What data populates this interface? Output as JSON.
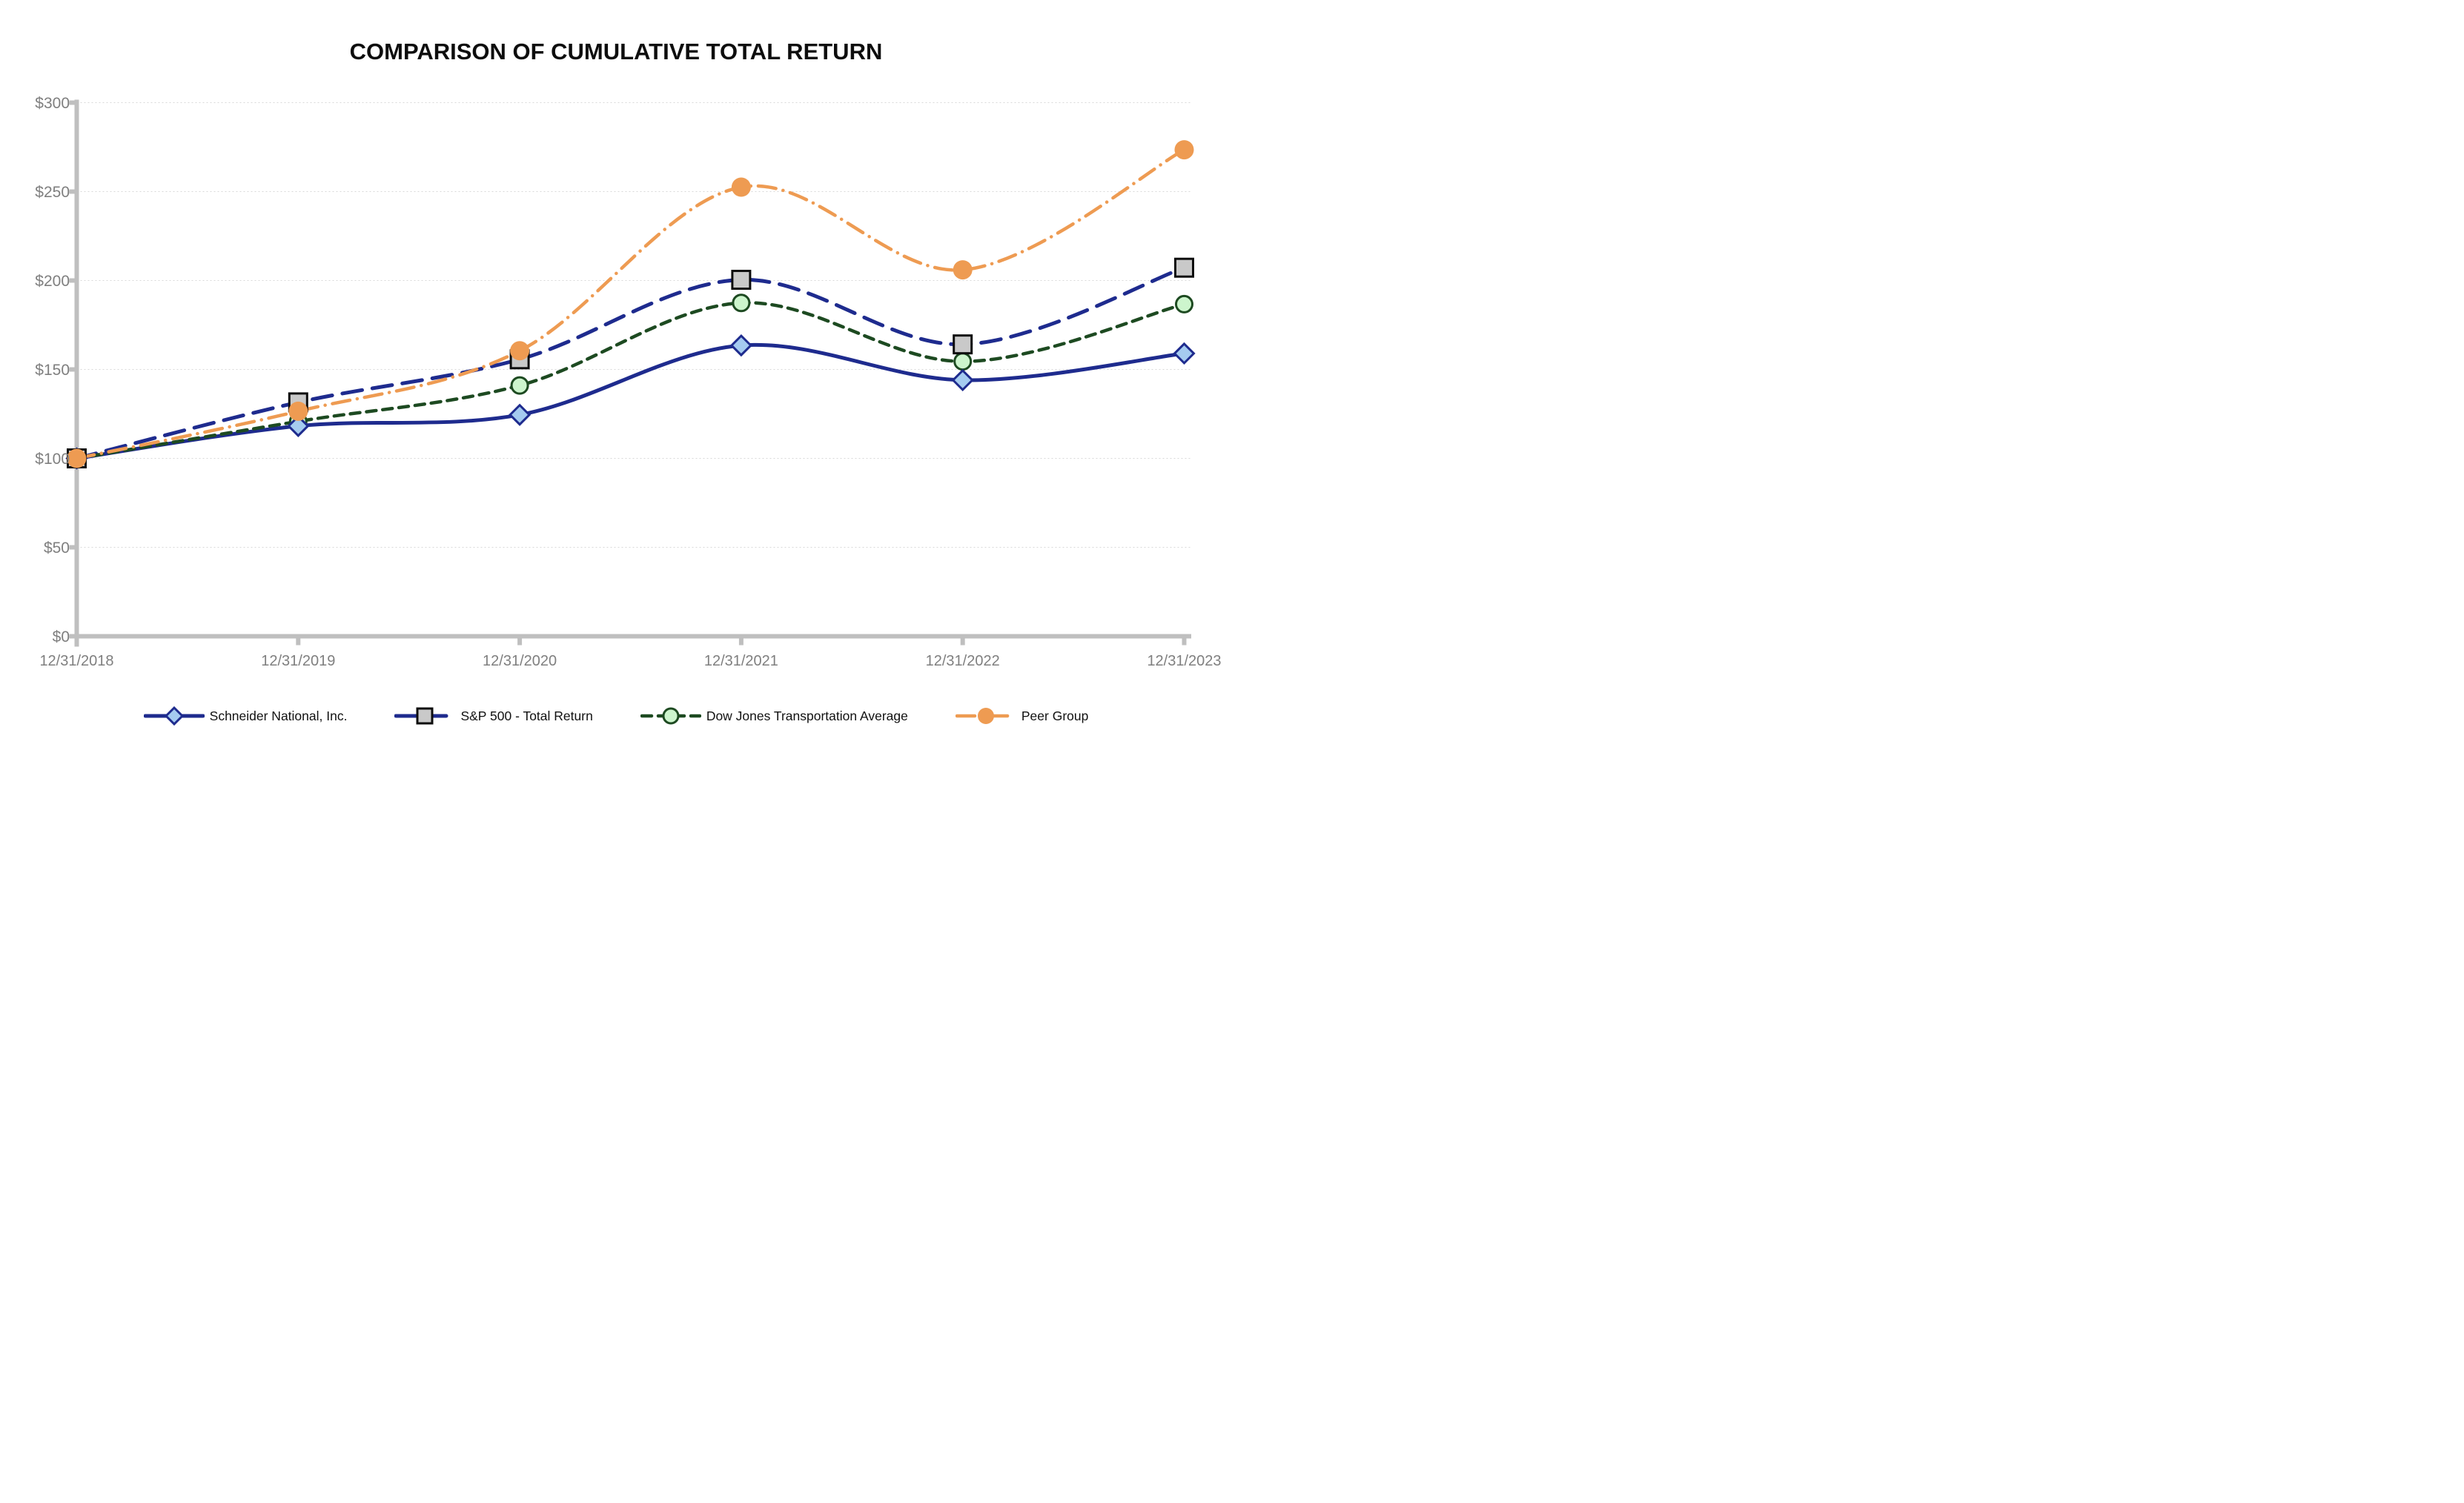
{
  "title": "COMPARISON OF CUMULATIVE TOTAL RETURN",
  "chart_data": {
    "type": "line",
    "title": "COMPARISON OF CUMULATIVE TOTAL RETURN",
    "x": [
      "12/31/2018",
      "12/31/2019",
      "12/31/2020",
      "12/31/2021",
      "12/31/2022",
      "12/31/2023"
    ],
    "y_tick_values": [
      0,
      50,
      100,
      150,
      200,
      250,
      300
    ],
    "y_tick_labels": [
      "$0",
      "$50",
      "$100",
      "$150",
      "$200",
      "$250",
      "$300"
    ],
    "ylim": [
      0,
      300
    ],
    "grid": "horizontal-dotted",
    "legend_position": "bottom",
    "series": [
      {
        "name": "Schneider National, Inc.",
        "values": [
          100,
          118.2,
          124.5,
          163.5,
          144.0,
          159.0
        ],
        "color": "#1E2B8E",
        "line_style": "solid",
        "marker": "diamond",
        "marker_fill": "#A5CBF0"
      },
      {
        "name": "S&P 500 - Total Return",
        "values": [
          100,
          131.5,
          155.7,
          200.4,
          164.1,
          207.2
        ],
        "color": "#1E2B8E",
        "line_style": "long-dash",
        "marker": "square",
        "marker_fill": "#C9C9C9",
        "marker_stroke": "#0d0d0d"
      },
      {
        "name": "Dow Jones Transportation Average",
        "values": [
          100,
          120.8,
          141.0,
          187.4,
          154.5,
          186.7
        ],
        "color": "#1D4A21",
        "line_style": "dash",
        "marker": "circle-outline",
        "marker_fill": "#CDF5CD"
      },
      {
        "name": "Peer Group",
        "values": [
          100,
          126.5,
          160.5,
          252.5,
          206.0,
          273.5
        ],
        "color": "#EE9B52",
        "line_style": "dash-dot",
        "marker": "circle",
        "marker_fill": "#EE9B52"
      }
    ],
    "axis_color": "#BFBFBF",
    "gridline_color": "#D9D9D9",
    "tick_label_color": "#7F7F7F"
  }
}
